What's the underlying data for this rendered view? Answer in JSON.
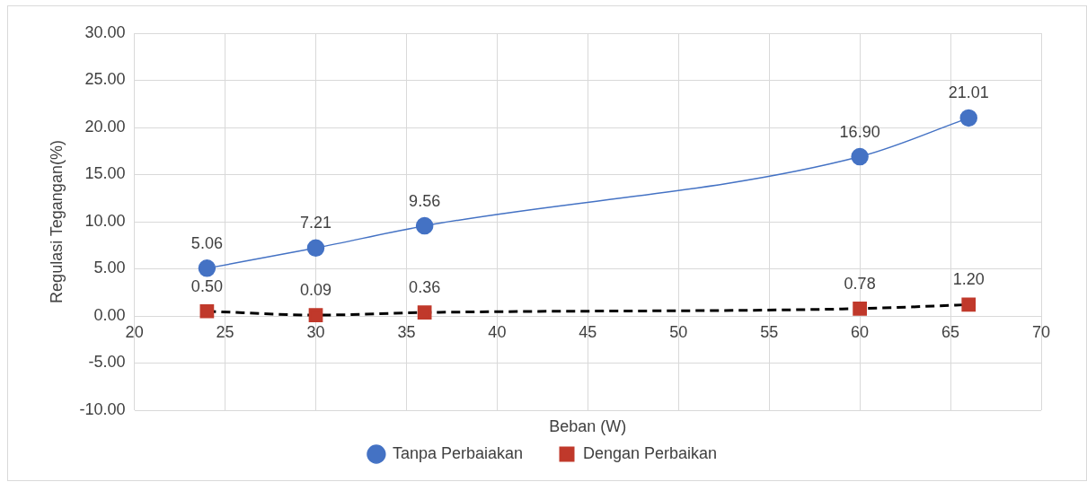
{
  "chart_data": {
    "type": "line",
    "xlabel": "Beban (W)",
    "ylabel": "Regulasi Tegangan(%)",
    "x": [
      24,
      30,
      36,
      60,
      66
    ],
    "series": [
      {
        "name": "Tanpa Perbaiakan",
        "color": "#4472c4",
        "values": [
          5.06,
          7.21,
          9.56,
          16.9,
          21.01
        ],
        "value_labels": [
          "5.06",
          "7.21",
          "9.56",
          "16.90",
          "21.01"
        ],
        "marker": "circle",
        "line_style": "solid"
      },
      {
        "name": "Dengan Perbaikan",
        "color": "#c0392b",
        "values": [
          0.5,
          0.09,
          0.36,
          0.78,
          1.2
        ],
        "value_labels": [
          "0.50",
          "0.09",
          "0.36",
          "0.78",
          "1.20"
        ],
        "marker": "square",
        "line_style": "dashed"
      }
    ],
    "xlim": [
      20,
      70
    ],
    "xticks": [
      20,
      25,
      30,
      35,
      40,
      45,
      50,
      55,
      60,
      65,
      70
    ],
    "ylim": [
      -10,
      30
    ],
    "yticks": [
      {
        "value": -10,
        "label": "-10.00"
      },
      {
        "value": -5,
        "label": "-5.00"
      },
      {
        "value": 0,
        "label": "0.00"
      },
      {
        "value": 5,
        "label": "5.00"
      },
      {
        "value": 10,
        "label": "10.00"
      },
      {
        "value": 15,
        "label": "15.00"
      },
      {
        "value": 20,
        "label": "20.00"
      },
      {
        "value": 25,
        "label": "25.00"
      },
      {
        "value": 30,
        "label": "30.00"
      }
    ],
    "grid": true,
    "legend": "bottom"
  }
}
